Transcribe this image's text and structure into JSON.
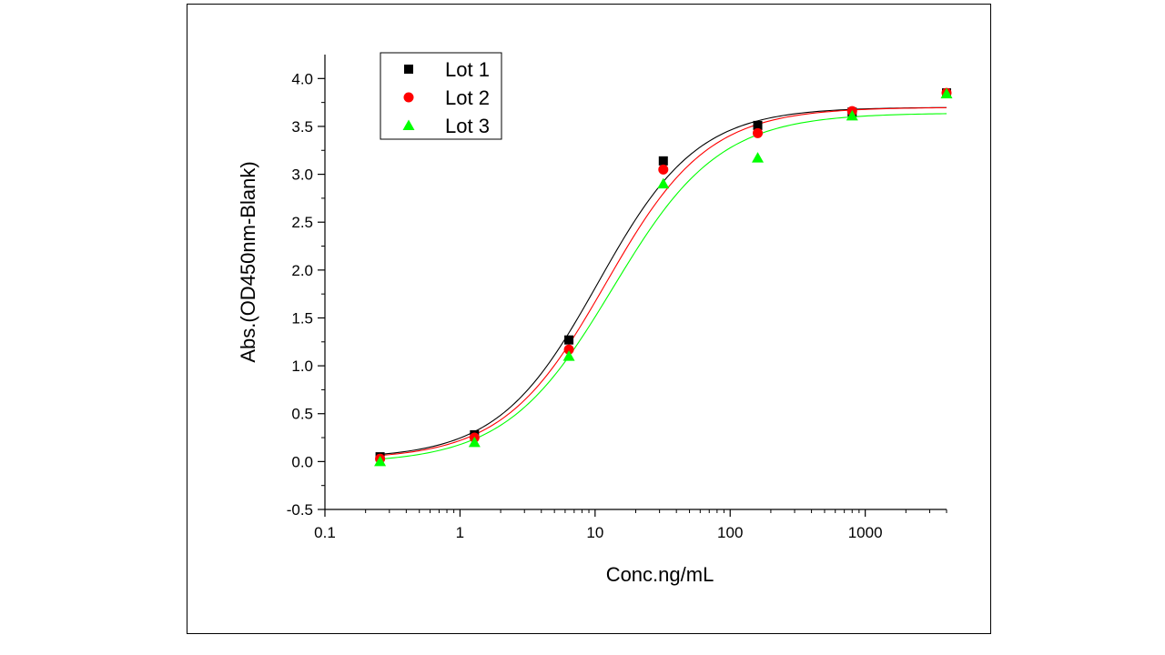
{
  "chart_data": {
    "type": "scatter",
    "title": "",
    "xlabel": "Conc.ng/mL",
    "ylabel": "Abs.(OD450nm-Blank)",
    "x_scale": "log",
    "xlim": [
      0.1,
      4000
    ],
    "ylim": [
      -0.5,
      4.25
    ],
    "x_ticks": [
      0.1,
      1,
      10,
      100,
      1000
    ],
    "x_tick_labels": [
      "0.1",
      "1",
      "10",
      "100",
      "1000"
    ],
    "y_ticks": [
      -0.5,
      0.0,
      0.5,
      1.0,
      1.5,
      2.0,
      2.5,
      3.0,
      3.5,
      4.0
    ],
    "y_tick_labels": [
      "-0.5",
      "0.0",
      "0.5",
      "1.0",
      "1.5",
      "2.0",
      "2.5",
      "3.0",
      "3.5",
      "4.0"
    ],
    "grid": false,
    "legend_position": "top-left",
    "fitted_curves": true,
    "x": [
      0.256,
      1.28,
      6.4,
      32,
      160,
      800,
      4000
    ],
    "series": [
      {
        "name": "Lot 1",
        "marker": "square",
        "color": "#000000",
        "values": [
          0.05,
          0.28,
          1.27,
          3.14,
          3.51,
          3.65,
          3.85
        ],
        "curve": {
          "bottom": 0.03,
          "top": 3.7,
          "ec50": 10.5,
          "hill": 1.18
        }
      },
      {
        "name": "Lot 2",
        "marker": "circle",
        "color": "#ff0000",
        "values": [
          0.03,
          0.25,
          1.17,
          3.05,
          3.43,
          3.66,
          3.85
        ],
        "curve": {
          "bottom": 0.02,
          "top": 3.7,
          "ec50": 12.0,
          "hill": 1.15
        }
      },
      {
        "name": "Lot 3",
        "marker": "triangle",
        "color": "#00ff00",
        "values": [
          0.0,
          0.2,
          1.1,
          2.9,
          3.17,
          3.61,
          3.84
        ],
        "curve": {
          "bottom": -0.02,
          "top": 3.64,
          "ec50": 13.5,
          "hill": 1.1
        }
      }
    ]
  }
}
